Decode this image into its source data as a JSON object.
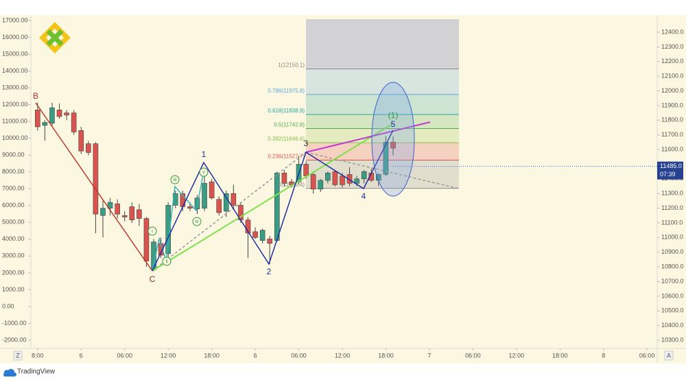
{
  "chart_data": {
    "type": "candlestick",
    "x": [
      0,
      1,
      2,
      3,
      4,
      5,
      6,
      7,
      8,
      9,
      10,
      11,
      12,
      13,
      14,
      15,
      16,
      17,
      18,
      19,
      20,
      21,
      22,
      23,
      24,
      25,
      26,
      27,
      28,
      29,
      30,
      31,
      32,
      33,
      34,
      35,
      36,
      37,
      38,
      39,
      40,
      41,
      42,
      43,
      44,
      45,
      46,
      47,
      48,
      49
    ],
    "open": [
      11870,
      11765,
      11780,
      11870,
      11850,
      11850,
      11730,
      11640,
      11640,
      11150,
      11200,
      11230,
      11150,
      11210,
      11190,
      11130,
      10780,
      10960,
      10890,
      11220,
      11300,
      11210,
      11195,
      11200,
      11380,
      11260,
      11180,
      11300,
      11220,
      11120,
      11040,
      10980,
      10990,
      10980,
      11440,
      11380,
      11380,
      11500,
      11430,
      11330,
      11390,
      11450,
      11420,
      11430,
      11370,
      11400,
      11440,
      11390,
      11430,
      11650
    ],
    "high": [
      11920,
      11800,
      11920,
      11915,
      11870,
      11870,
      11755,
      11660,
      11650,
      11250,
      11270,
      11260,
      11180,
      11240,
      11230,
      11140,
      10990,
      11000,
      11240,
      11320,
      11320,
      11240,
      11290,
      11420,
      11400,
      11280,
      11320,
      11360,
      11240,
      11140,
      11070,
      11060,
      11010,
      11450,
      11460,
      11400,
      11560,
      11520,
      11450,
      11400,
      11450,
      11460,
      11440,
      11480,
      11420,
      11460,
      11470,
      11440,
      11690,
      11690
    ],
    "low": [
      11730,
      11660,
      11760,
      11810,
      11800,
      11700,
      11570,
      11560,
      11030,
      11000,
      11150,
      11130,
      11110,
      11100,
      11080,
      10800,
      10770,
      10860,
      10860,
      11200,
      11180,
      11180,
      11160,
      11180,
      11260,
      11150,
      11140,
      11200,
      11100,
      10860,
      10990,
      10960,
      10820,
      10970,
      11350,
      11340,
      11360,
      11400,
      11300,
      11310,
      11370,
      11350,
      11340,
      11350,
      11350,
      11370,
      11380,
      11350,
      11420,
      11560
    ],
    "close": [
      11755,
      11785,
      11885,
      11825,
      11835,
      11720,
      11590,
      11580,
      11160,
      11200,
      11240,
      11160,
      11140,
      11120,
      11130,
      10840,
      10970,
      10880,
      11220,
      11300,
      11210,
      11200,
      11270,
      11370,
      11270,
      11170,
      11300,
      11220,
      11120,
      11030,
      11000,
      11050,
      10960,
      11440,
      11370,
      11360,
      11500,
      11420,
      11330,
      11390,
      11440,
      11360,
      11360,
      11370,
      11400,
      11450,
      11390,
      11430,
      11650,
      11610
    ],
    "up_color": "#3a9d83",
    "down_color": "#d9534f",
    "xlim": [
      -1.4,
      85.4
    ],
    "xticks": [
      {
        "value": 0,
        "label": "8:00"
      },
      6,
      {
        "value": 12,
        "label": "06:00"
      },
      {
        "value": 18,
        "label": "12:00"
      },
      {
        "value": 24,
        "label": "18:00"
      },
      {
        "value": 30,
        "label": "6"
      },
      {
        "value": 36,
        "label": "06:00"
      },
      {
        "value": 42,
        "label": "12:00"
      },
      {
        "value": 48,
        "label": "18:00"
      },
      {
        "value": 54,
        "label": "7"
      },
      {
        "value": 60,
        "label": "06:00"
      },
      {
        "value": 66,
        "label": "12:00"
      },
      {
        "value": 72,
        "label": "18:00"
      },
      {
        "value": 78,
        "label": "8"
      },
      {
        "value": 84,
        "label": "06:00"
      }
    ],
    "ylim": [
      10244,
      12517
    ],
    "yticks": [
      {
        "value": 10300,
        "label": "10300.0"
      },
      {
        "value": 10400,
        "label": "10400.0"
      },
      {
        "value": 10500,
        "label": "10500.0"
      },
      {
        "value": 10600,
        "label": "10600.0"
      },
      {
        "value": 10700,
        "label": "10700.0"
      },
      {
        "value": 10800,
        "label": "10800.0"
      },
      {
        "value": 10900,
        "label": "10900.0"
      },
      {
        "value": 11000,
        "label": "11000.0"
      },
      {
        "value": 11100,
        "label": "11100.0"
      },
      {
        "value": 11200,
        "label": "11200.0"
      },
      {
        "value": 11300,
        "label": "11300.0"
      },
      {
        "value": 11400,
        "label": "11400.0"
      },
      {
        "value": 11500,
        "label": "11500.0"
      },
      {
        "value": 11600,
        "label": "11600.0"
      },
      {
        "value": 11700,
        "label": "11700.0"
      },
      {
        "value": 11800,
        "label": "11800.0"
      },
      {
        "value": 11900,
        "label": "11900.0"
      },
      {
        "value": 12000,
        "label": "12000.0"
      },
      {
        "value": 12100,
        "label": "12100.0"
      },
      {
        "value": 12200,
        "label": "12200.0"
      },
      {
        "value": 12300,
        "label": "12300.0"
      },
      {
        "value": 12400,
        "label": "12400.0"
      }
    ],
    "y2lim": [
      -2489,
      17326
    ],
    "y2ticks": [
      {
        "value": -2000,
        "label": "-2000.00"
      },
      {
        "value": -1000,
        "label": "-1000.00"
      },
      {
        "value": 0,
        "label": "0.00"
      },
      {
        "value": 1000,
        "label": "1000.00"
      },
      {
        "value": 2000,
        "label": "2000.00"
      },
      {
        "value": 3000,
        "label": "3000.00"
      },
      {
        "value": 4000,
        "label": "4000.00"
      },
      {
        "value": 5000,
        "label": "5000.00"
      },
      {
        "value": 6000,
        "label": "6000.00"
      },
      {
        "value": 7000,
        "label": "7000.00"
      },
      {
        "value": 8000,
        "label": "8000.00"
      },
      {
        "value": 9000,
        "label": "9000.00"
      },
      {
        "value": 10000,
        "label": "10000.00"
      },
      {
        "value": 11000,
        "label": "11000.00"
      },
      {
        "value": 12000,
        "label": "12000.00"
      },
      {
        "value": 13000,
        "label": "13000.00"
      },
      {
        "value": 14000,
        "label": "14000.00"
      },
      {
        "value": 15000,
        "label": "15000.00"
      },
      {
        "value": 16000,
        "label": "16000.00"
      },
      {
        "value": 17000,
        "label": "17000.00"
      }
    ],
    "last_price": {
      "value": 11485,
      "label": "11485.0"
    },
    "countdown": "07:39",
    "fib_levels": [
      {
        "value": 12150.1,
        "label": "1(12150.1)"
      },
      {
        "value": 11975.8,
        "label": "0.786(11975.8)"
      },
      {
        "value": 11838.9,
        "label": "0.618(11838.9)"
      },
      {
        "value": 11742.8,
        "label": "0.5(11742.8)"
      },
      {
        "value": 11646.6,
        "label": "0.382(11646.6)"
      },
      {
        "value": 11527.7,
        "label": "0.236(11527.7)"
      },
      {
        "value": 11335.4,
        "label": "0(11335.4)"
      }
    ],
    "fib_colors": [
      "#888888",
      "#5ba8d8",
      "#26a69a",
      "#4caf50",
      "#8bc34a",
      "#e0524f",
      "#888888"
    ],
    "fib_top_color": "#9fa3c8",
    "wave_labels": [
      "B",
      "C",
      "1",
      "2",
      "3",
      "4",
      "5",
      "(1)"
    ],
    "minor_wave_labels": [
      "i",
      "ii",
      "iii",
      "iv",
      "v"
    ]
  },
  "ui": {
    "z_button": "Z",
    "a_button": "A",
    "brand": "TradingView"
  }
}
